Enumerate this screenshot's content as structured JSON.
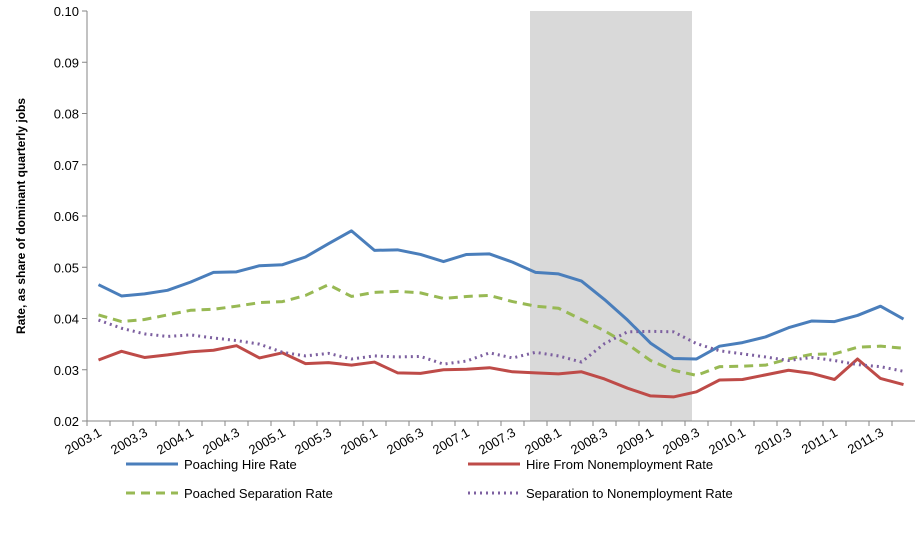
{
  "chart_data": {
    "type": "line",
    "y_label": "Rate, as share of dominant quarterly jobs",
    "categories": [
      "2003.1",
      null,
      "2003.3",
      null,
      "2004.1",
      null,
      "2004.3",
      null,
      "2005.1",
      null,
      "2005.3",
      null,
      "2006.1",
      null,
      "2006.3",
      null,
      "2007.1",
      null,
      "2007.3",
      null,
      "2008.1",
      null,
      "2008.3",
      null,
      "2009.1",
      null,
      "2009.3",
      null,
      "2010.1",
      null,
      "2010.3",
      null,
      "2011.1",
      null,
      "2011.3",
      null
    ],
    "series": [
      {
        "name": "Poaching Hire Rate",
        "color": "#4a7ebb",
        "dash": "none",
        "values": [
          0.0466,
          0.0444,
          0.0448,
          0.0455,
          0.0471,
          0.049,
          0.0491,
          0.0503,
          0.0505,
          0.052,
          0.0546,
          0.0571,
          0.0533,
          0.0534,
          0.0525,
          0.0511,
          0.0525,
          0.0526,
          0.051,
          0.049,
          0.0487,
          0.0473,
          0.0437,
          0.0397,
          0.0352,
          0.0322,
          0.0321,
          0.0346,
          0.0353,
          0.0364,
          0.0382,
          0.0395,
          0.0394,
          0.0406,
          0.0424,
          0.0399
        ]
      },
      {
        "name": "Hire From Nonemployment Rate",
        "color": "#be4b48",
        "dash": "none",
        "values": [
          0.0319,
          0.0336,
          0.0324,
          0.0329,
          0.0335,
          0.0338,
          0.0347,
          0.0323,
          0.0333,
          0.0312,
          0.0314,
          0.0309,
          0.0315,
          0.0294,
          0.0293,
          0.03,
          0.0301,
          0.0304,
          0.0296,
          0.0294,
          0.0292,
          0.0296,
          0.0282,
          0.0264,
          0.0249,
          0.0247,
          0.0257,
          0.028,
          0.0281,
          0.029,
          0.0299,
          0.0293,
          0.0281,
          0.0321,
          0.0283,
          0.0271
        ]
      },
      {
        "name": "Poached Separation Rate",
        "color": "#98b954",
        "dash": "9 6",
        "values": [
          0.0407,
          0.0394,
          0.0398,
          0.0407,
          0.0416,
          0.0418,
          0.0424,
          0.0431,
          0.0433,
          0.0445,
          0.0466,
          0.0443,
          0.0451,
          0.0453,
          0.045,
          0.0439,
          0.0443,
          0.0445,
          0.0433,
          0.0424,
          0.042,
          0.0398,
          0.0376,
          0.035,
          0.0318,
          0.0299,
          0.0289,
          0.0306,
          0.0307,
          0.0309,
          0.0321,
          0.033,
          0.0331,
          0.0344,
          0.0346,
          0.0342
        ]
      },
      {
        "name": "Separation to Nonemployment Rate",
        "color": "#7d60a0",
        "dash": "2 4",
        "values": [
          0.0397,
          0.0381,
          0.037,
          0.0365,
          0.0368,
          0.0362,
          0.0357,
          0.035,
          0.0334,
          0.0327,
          0.0332,
          0.0321,
          0.0327,
          0.0325,
          0.0326,
          0.0311,
          0.0317,
          0.0333,
          0.0323,
          0.0334,
          0.0327,
          0.0315,
          0.0351,
          0.0374,
          0.0375,
          0.0374,
          0.0351,
          0.0337,
          0.0331,
          0.0325,
          0.0318,
          0.0324,
          0.0318,
          0.031,
          0.0306,
          0.0297
        ]
      }
    ],
    "ylim": [
      0.02,
      0.1
    ],
    "yticks": [
      0.02,
      0.03,
      0.04,
      0.05,
      0.06,
      0.07,
      0.08,
      0.09,
      {
        "value": 0.1,
        "label": "0.10"
      }
    ],
    "grid": false
  }
}
